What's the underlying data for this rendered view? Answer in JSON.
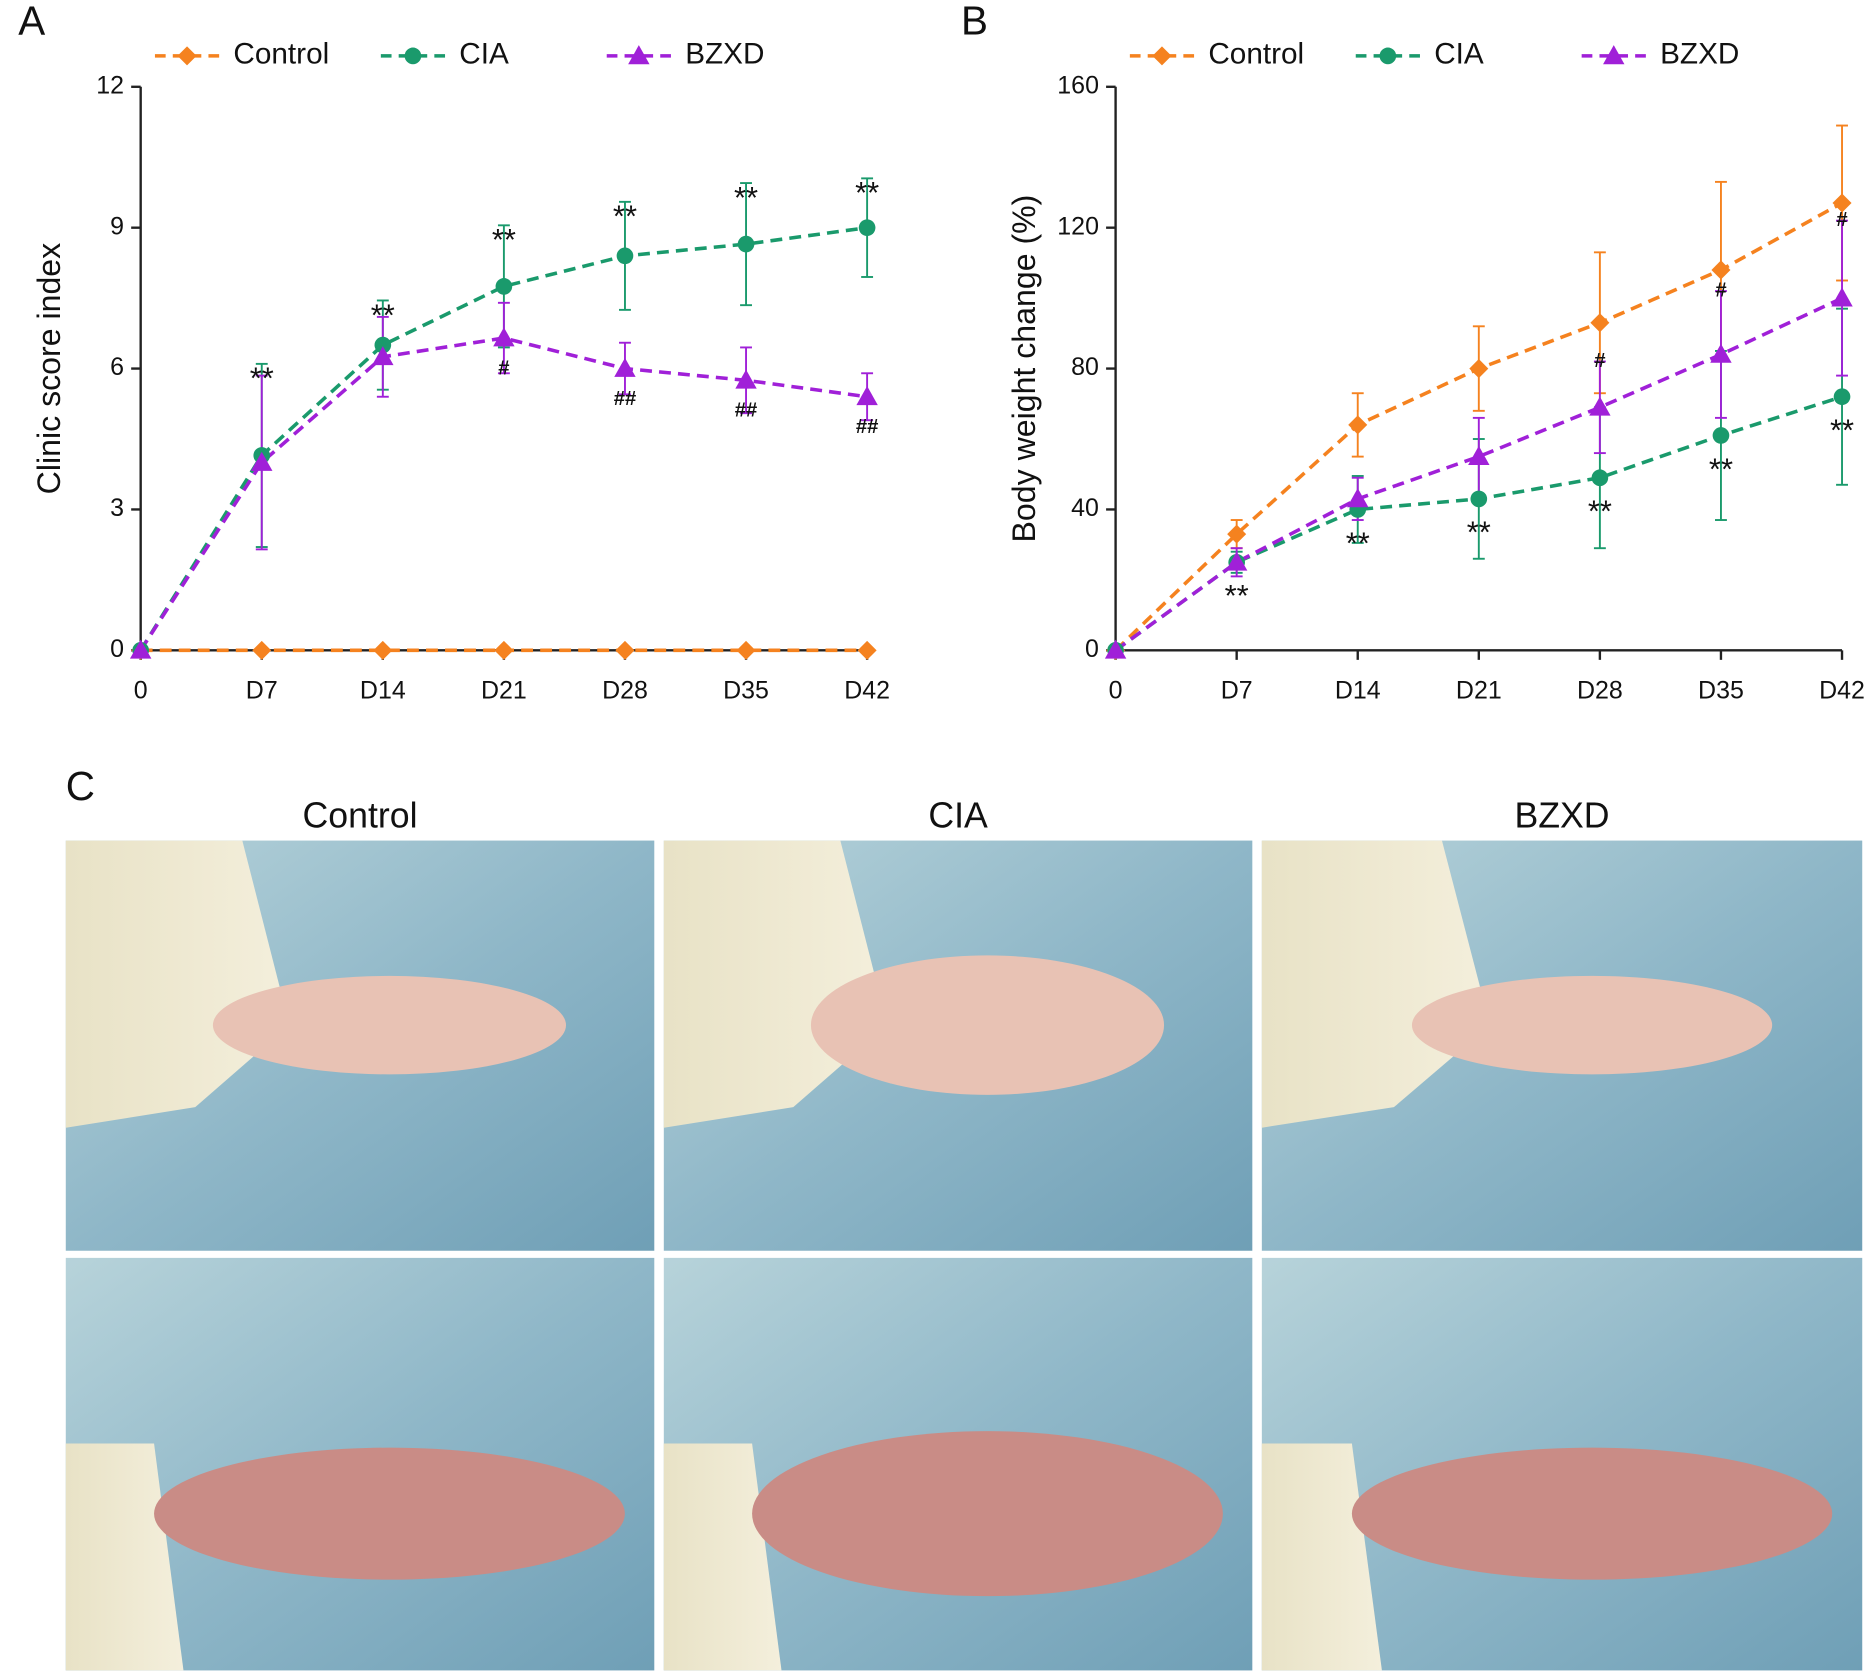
{
  "chart_data": [
    {
      "type": "line",
      "panel_label": "A",
      "ylabel": "Clinic score index",
      "categories": [
        "0",
        "D7",
        "D14",
        "D21",
        "D28",
        "D35",
        "D42"
      ],
      "ylim": [
        0,
        12
      ],
      "yticks": [
        0,
        3,
        6,
        9,
        12
      ],
      "series": [
        {
          "name": "Control",
          "color": "#f5821f",
          "marker": "diamond",
          "values": [
            0,
            0,
            0,
            0,
            0,
            0,
            0
          ],
          "errors": [
            0,
            0,
            0,
            0,
            0,
            0,
            0
          ]
        },
        {
          "name": "CIA",
          "color": "#1a9a6c",
          "marker": "circle",
          "values": [
            0,
            4.15,
            6.5,
            7.75,
            8.4,
            8.65,
            9.0
          ],
          "errors": [
            0,
            1.95,
            0.95,
            1.3,
            1.15,
            1.3,
            1.05
          ],
          "annotations": [
            null,
            "**",
            "**",
            "**",
            "**",
            "**",
            "**"
          ],
          "annotation_position": "above"
        },
        {
          "name": "BZXD",
          "color": "#a020d8",
          "marker": "triangle",
          "values": [
            0,
            4.0,
            6.25,
            6.65,
            6.0,
            5.75,
            5.4
          ],
          "errors": [
            0,
            1.85,
            0.85,
            0.75,
            0.55,
            0.7,
            0.5
          ],
          "annotations": [
            null,
            null,
            null,
            "#",
            "##",
            "##",
            "##"
          ],
          "annotation_position": "below"
        }
      ]
    },
    {
      "type": "line",
      "panel_label": "B",
      "ylabel": "Body weight change (%)",
      "categories": [
        "0",
        "D7",
        "D14",
        "D21",
        "D28",
        "D35",
        "D42"
      ],
      "ylim": [
        0,
        160
      ],
      "yticks": [
        0,
        40,
        80,
        120,
        160
      ],
      "series": [
        {
          "name": "Control",
          "color": "#f5821f",
          "marker": "diamond",
          "values": [
            0,
            33,
            64,
            80,
            93,
            108,
            127
          ],
          "errors": [
            0,
            4,
            9,
            12,
            20,
            25,
            22
          ]
        },
        {
          "name": "CIA",
          "color": "#1a9a6c",
          "marker": "circle",
          "values": [
            0,
            25,
            40,
            43,
            49,
            61,
            72
          ],
          "errors": [
            0,
            3,
            9.5,
            17,
            20,
            24,
            25
          ],
          "annotations": [
            null,
            "**",
            "**",
            "**",
            "**",
            "**",
            "**"
          ],
          "annotation_position": "below"
        },
        {
          "name": "BZXD",
          "color": "#a020d8",
          "marker": "triangle",
          "values": [
            0,
            25,
            43,
            55,
            69,
            84,
            100
          ],
          "errors": [
            0,
            4,
            6,
            11,
            13,
            18,
            22
          ],
          "annotations": [
            null,
            null,
            null,
            null,
            "#",
            "#",
            "#"
          ],
          "annotation_position": "above"
        }
      ]
    }
  ],
  "photo_panel": {
    "panel_label": "C",
    "columns": [
      "Control",
      "CIA",
      "BZXD"
    ]
  }
}
